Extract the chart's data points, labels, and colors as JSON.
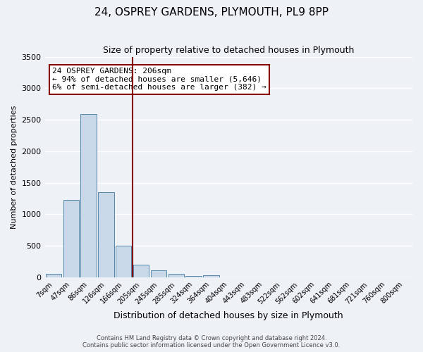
{
  "title": "24, OSPREY GARDENS, PLYMOUTH, PL9 8PP",
  "subtitle": "Size of property relative to detached houses in Plymouth",
  "xlabel": "Distribution of detached houses by size in Plymouth",
  "ylabel": "Number of detached properties",
  "bin_labels": [
    "7sqm",
    "47sqm",
    "86sqm",
    "126sqm",
    "166sqm",
    "205sqm",
    "245sqm",
    "285sqm",
    "324sqm",
    "364sqm",
    "404sqm",
    "443sqm",
    "483sqm",
    "522sqm",
    "562sqm",
    "602sqm",
    "641sqm",
    "681sqm",
    "721sqm",
    "760sqm",
    "800sqm"
  ],
  "bar_values": [
    50,
    1230,
    2590,
    1350,
    500,
    200,
    115,
    50,
    25,
    30,
    0,
    0,
    0,
    0,
    0,
    0,
    0,
    0,
    0,
    0,
    0
  ],
  "bar_color": "#c8d8e8",
  "bar_edge_color": "#5588aa",
  "vline_x_index": 5,
  "vline_color": "#880000",
  "annotation_title": "24 OSPREY GARDENS: 206sqm",
  "annotation_line2": "← 94% of detached houses are smaller (5,646)",
  "annotation_line3": "6% of semi-detached houses are larger (382) →",
  "annotation_box_color": "#880000",
  "annotation_bg": "#ffffff",
  "ylim": [
    0,
    3500
  ],
  "yticks": [
    0,
    500,
    1000,
    1500,
    2000,
    2500,
    3000,
    3500
  ],
  "footer_line1": "Contains HM Land Registry data © Crown copyright and database right 2024.",
  "footer_line2": "Contains public sector information licensed under the Open Government Licence v3.0.",
  "bg_color": "#eef2f7",
  "grid_color": "#ffffff"
}
